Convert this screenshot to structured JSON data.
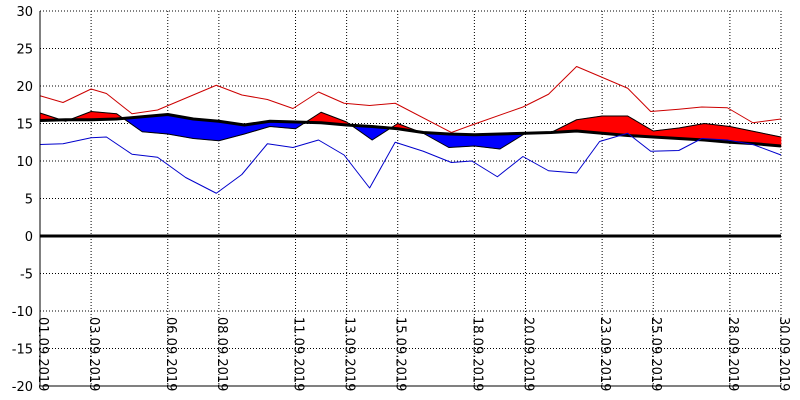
{
  "chart_data": {
    "type": "area",
    "title": "",
    "xlabel": "",
    "ylabel": "",
    "ylim": [
      -20,
      30
    ],
    "yticks": [
      30,
      25,
      20,
      15,
      10,
      5,
      0,
      -5,
      -10,
      -15,
      -20
    ],
    "grid": true,
    "legend": "none",
    "x_tick_labels": [
      {
        "day": 1,
        "label": "01.09.2019"
      },
      {
        "day": 3,
        "label": "03.09.2019"
      },
      {
        "day": 6,
        "label": "06.09.2019"
      },
      {
        "day": 8,
        "label": "08.09.2019"
      },
      {
        "day": 11,
        "label": "11.09.2019"
      },
      {
        "day": 13,
        "label": "13.09.2019"
      },
      {
        "day": 15,
        "label": "15.09.2019"
      },
      {
        "day": 18,
        "label": "18.09.2019"
      },
      {
        "day": 20,
        "label": "20.09.2019"
      },
      {
        "day": 23,
        "label": "23.09.2019"
      },
      {
        "day": 25,
        "label": "25.09.2019"
      },
      {
        "day": 28,
        "label": "28.09.2019"
      },
      {
        "day": 30,
        "label": "30.09.2019"
      }
    ],
    "series": [
      {
        "color": "#cc0000",
        "values": [
          [
            1,
            18.7
          ],
          [
            1.9,
            17.8
          ],
          [
            3,
            19.6
          ],
          [
            3.6,
            19.0
          ],
          [
            4.6,
            16.3
          ],
          [
            5.6,
            16.8
          ],
          [
            7.9,
            20.1
          ],
          [
            8.9,
            18.8
          ],
          [
            9.9,
            18.2
          ],
          [
            10.9,
            17.0
          ],
          [
            11.9,
            19.2
          ],
          [
            12.9,
            17.7
          ],
          [
            13.9,
            17.4
          ],
          [
            14.9,
            17.7
          ],
          [
            17.1,
            13.8
          ],
          [
            17.9,
            14.8
          ],
          [
            19.9,
            17.2
          ],
          [
            20.9,
            18.9
          ],
          [
            22.0,
            22.6
          ],
          [
            22.9,
            21.3
          ],
          [
            24.0,
            19.7
          ],
          [
            24.9,
            16.6
          ],
          [
            26.0,
            16.9
          ],
          [
            26.9,
            17.2
          ],
          [
            27.9,
            17.1
          ],
          [
            28.9,
            15.1
          ],
          [
            30.0,
            15.6
          ]
        ]
      },
      {
        "color": "#000000",
        "values": [
          [
            1,
            15.4
          ],
          [
            2,
            15.5
          ],
          [
            3,
            15.5
          ],
          [
            4,
            15.6
          ],
          [
            5,
            15.9
          ],
          [
            6,
            16.2
          ],
          [
            7,
            15.6
          ],
          [
            8,
            15.3
          ],
          [
            9,
            14.8
          ],
          [
            10,
            15.3
          ],
          [
            11,
            15.2
          ],
          [
            12,
            15.1
          ],
          [
            13,
            14.8
          ],
          [
            14,
            14.6
          ],
          [
            15,
            14.3
          ],
          [
            16,
            13.8
          ],
          [
            17,
            13.6
          ],
          [
            18,
            13.5
          ],
          [
            19,
            13.6
          ],
          [
            20,
            13.7
          ],
          [
            21,
            13.8
          ],
          [
            22,
            14.0
          ],
          [
            23,
            13.7
          ],
          [
            24,
            13.4
          ],
          [
            25,
            13.2
          ],
          [
            26,
            13.0
          ],
          [
            27,
            12.8
          ],
          [
            28,
            12.5
          ],
          [
            29,
            12.3
          ],
          [
            30,
            12.0
          ]
        ]
      },
      {
        "color": "#0000cc",
        "values": [
          [
            1,
            12.2
          ],
          [
            1.9,
            12.3
          ],
          [
            3,
            13.1
          ],
          [
            3.6,
            13.2
          ],
          [
            4.6,
            10.9
          ],
          [
            5.6,
            10.5
          ],
          [
            6.7,
            7.8
          ],
          [
            7.9,
            5.7
          ],
          [
            8.9,
            8.2
          ],
          [
            9.9,
            12.3
          ],
          [
            10.9,
            11.8
          ],
          [
            11.9,
            12.8
          ],
          [
            12.9,
            10.8
          ],
          [
            13.9,
            6.4
          ],
          [
            14.9,
            12.5
          ],
          [
            16.0,
            11.3
          ],
          [
            17.1,
            9.8
          ],
          [
            17.9,
            10.0
          ],
          [
            18.9,
            7.9
          ],
          [
            19.9,
            10.6
          ],
          [
            20.9,
            8.7
          ],
          [
            22.0,
            8.4
          ],
          [
            22.9,
            12.6
          ],
          [
            24.0,
            13.7
          ],
          [
            24.9,
            11.3
          ],
          [
            26.0,
            11.4
          ],
          [
            26.9,
            13.0
          ],
          [
            27.9,
            12.8
          ],
          [
            28.9,
            12.2
          ],
          [
            30.0,
            10.8
          ]
        ]
      },
      {
        "color": "#000000",
        "values": [
          [
            1,
            16.4
          ],
          [
            2,
            15.3
          ],
          [
            3,
            16.6
          ],
          [
            4,
            16.3
          ],
          [
            5,
            13.9
          ],
          [
            6,
            13.6
          ],
          [
            7,
            13.0
          ],
          [
            8,
            12.7
          ],
          [
            9,
            13.6
          ],
          [
            10,
            14.6
          ],
          [
            11,
            14.3
          ],
          [
            12,
            16.5
          ],
          [
            13,
            15.2
          ],
          [
            14,
            12.8
          ],
          [
            15,
            15.0
          ],
          [
            16,
            13.7
          ],
          [
            17,
            11.8
          ],
          [
            18,
            12.0
          ],
          [
            19,
            11.6
          ],
          [
            20,
            13.7
          ],
          [
            21,
            13.8
          ],
          [
            22,
            15.5
          ],
          [
            23,
            16.0
          ],
          [
            24,
            16.0
          ],
          [
            25,
            14.0
          ],
          [
            26,
            14.4
          ],
          [
            27,
            15.0
          ],
          [
            28,
            14.6
          ],
          [
            29,
            13.9
          ],
          [
            30,
            13.2
          ]
        ]
      }
    ]
  }
}
